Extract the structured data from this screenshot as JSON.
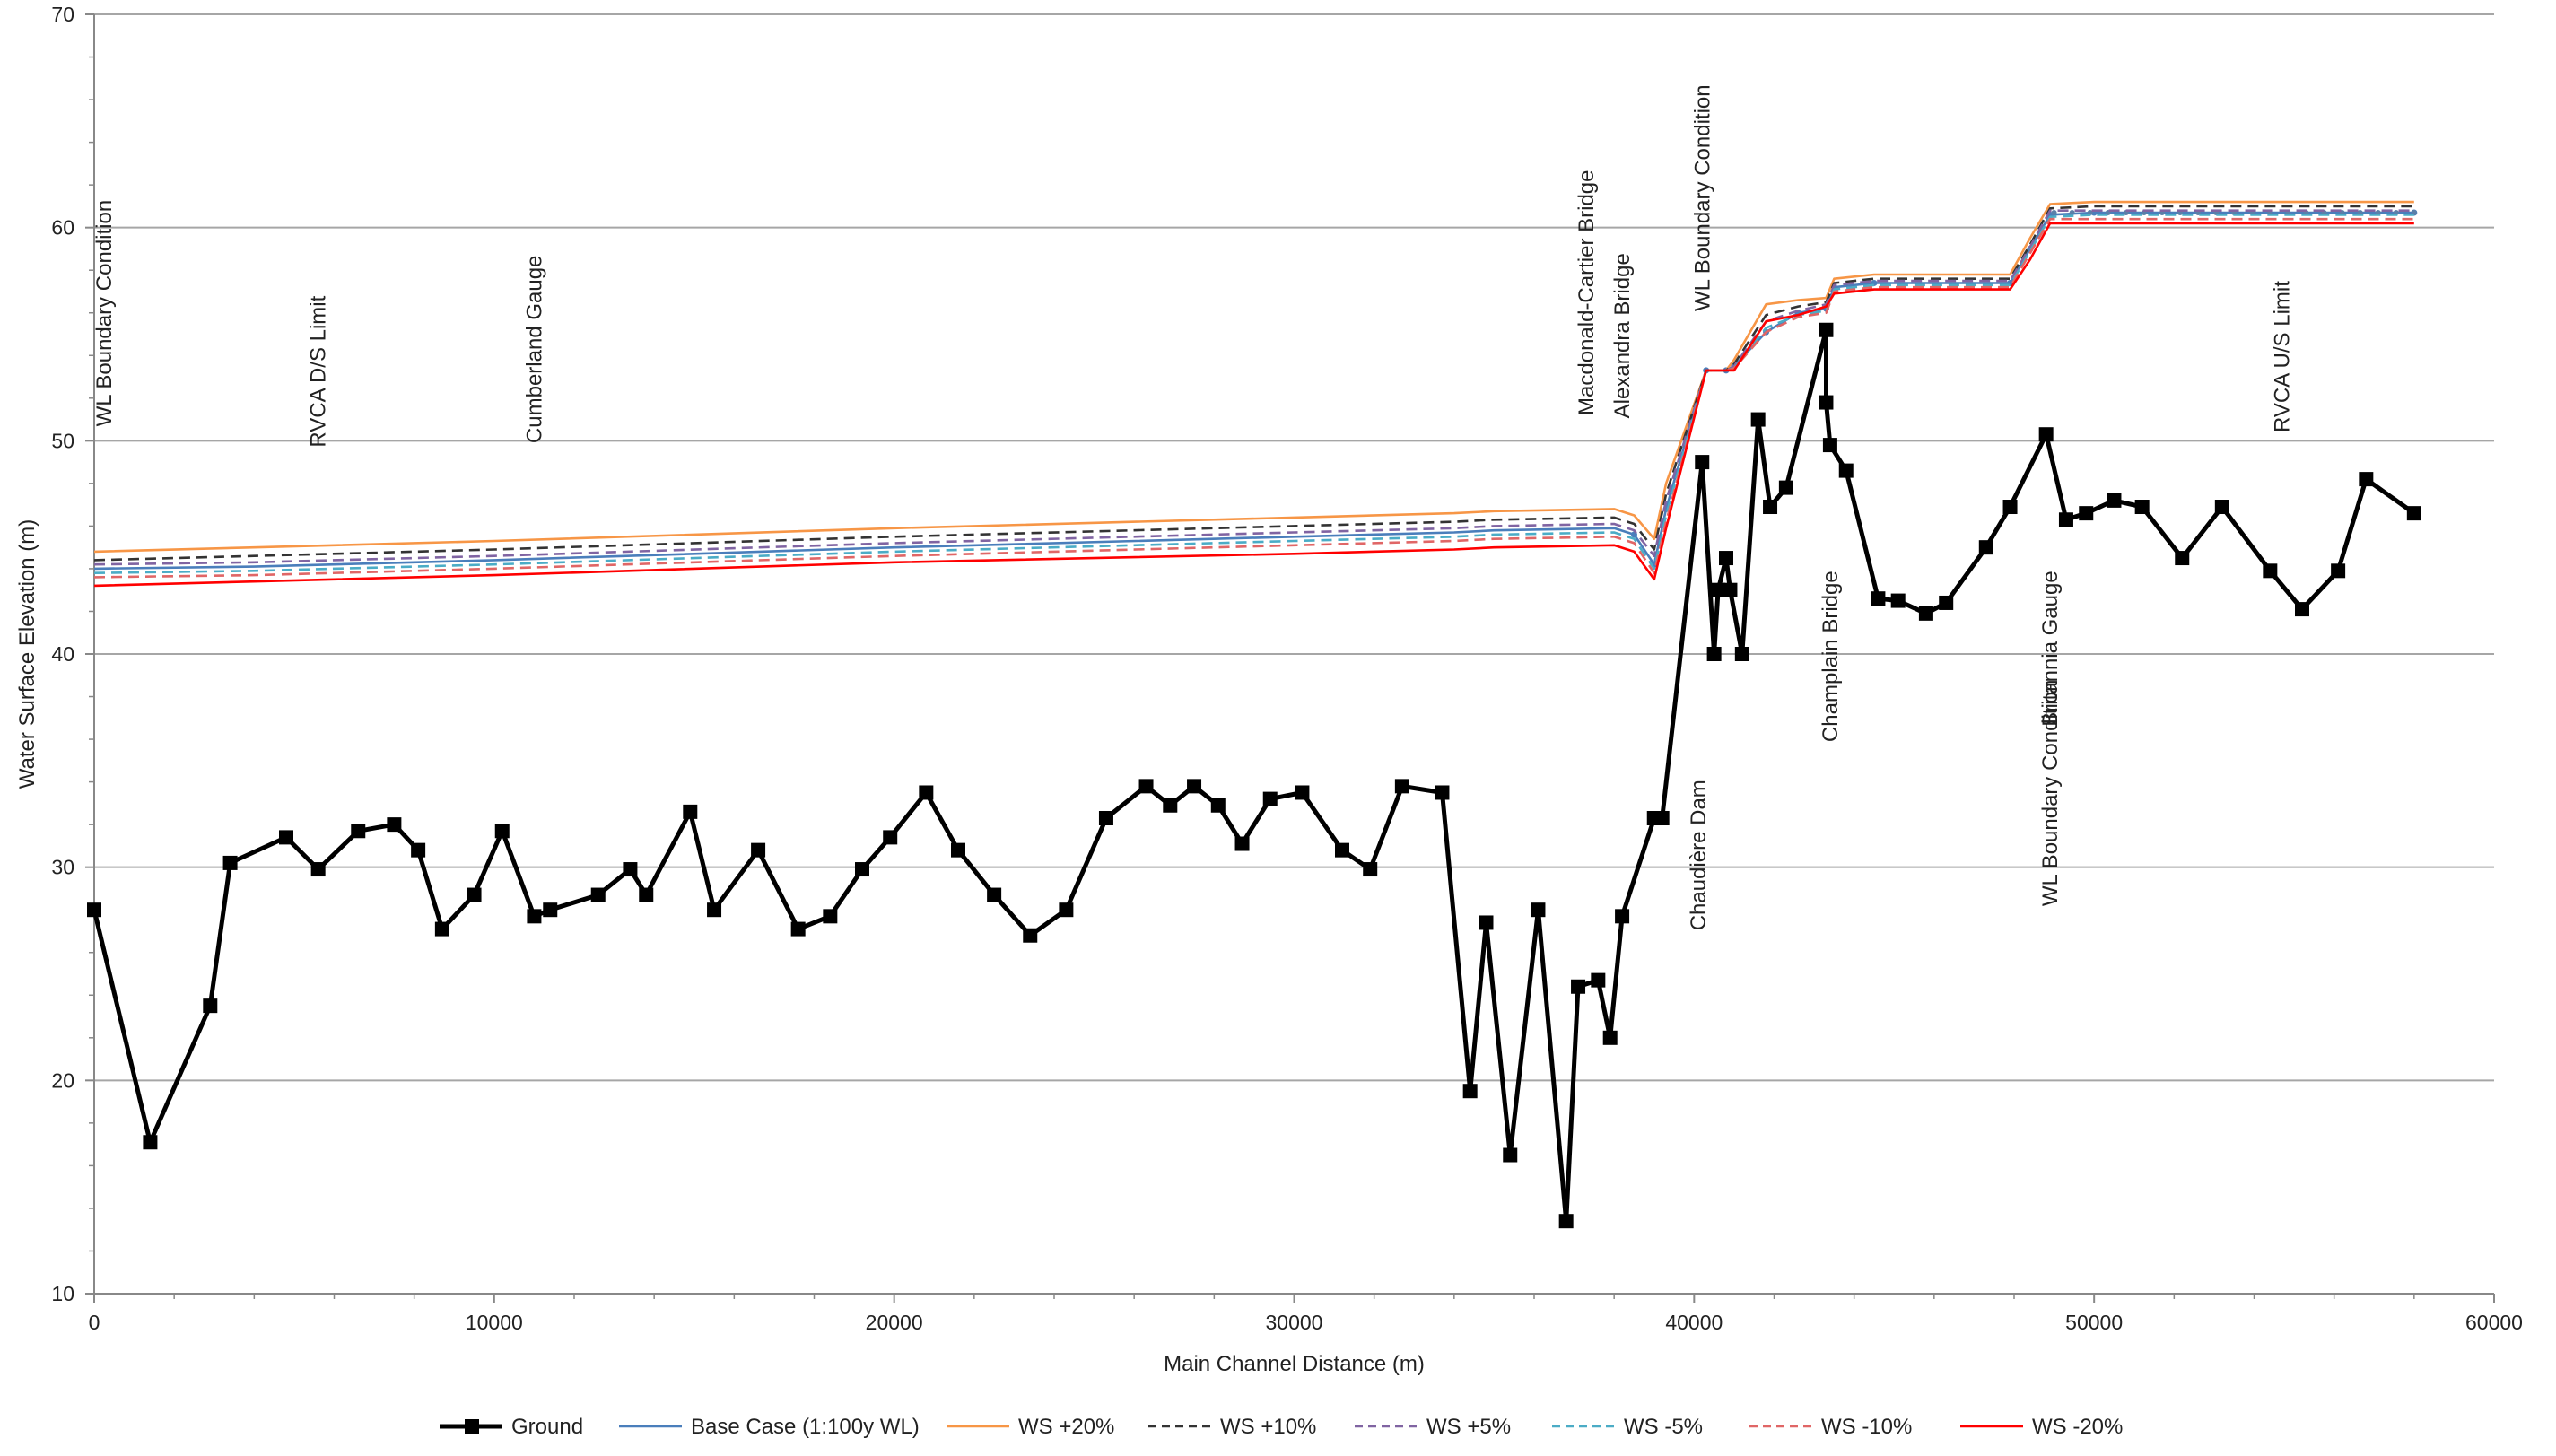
{
  "chart_data": {
    "type": "line",
    "xlabel": "Main Channel Distance (m)",
    "ylabel": "Water Surface Elevation (m)",
    "xlim": [
      0,
      60000
    ],
    "ylim": [
      10,
      70
    ],
    "xticks": [
      0,
      10000,
      20000,
      30000,
      40000,
      50000,
      60000
    ],
    "yticks": [
      10,
      20,
      30,
      40,
      50,
      60,
      70
    ],
    "grid": "horizontal",
    "legend_position": "bottom",
    "series": [
      {
        "name": "Ground",
        "color": "#000000",
        "style": "solid-markers",
        "x": [
          0,
          1400,
          2900,
          3400,
          4800,
          5600,
          6600,
          7500,
          8100,
          8700,
          9500,
          10200,
          11000,
          11400,
          12600,
          13400,
          13800,
          14900,
          15500,
          16600,
          17600,
          18400,
          19200,
          19900,
          20800,
          21600,
          22500,
          23400,
          24300,
          25300,
          26300,
          26900,
          27500,
          28100,
          28700,
          29400,
          30200,
          31200,
          31900,
          32700,
          33700,
          34400,
          34800,
          35400,
          36100,
          36800,
          37100,
          37600,
          37900,
          38200,
          39000,
          39200,
          40200,
          40500,
          40600,
          40800,
          40900,
          41200,
          41600,
          41900,
          42300,
          43300,
          43300,
          43400,
          43800,
          44600,
          45100,
          45800,
          46300,
          47300,
          47900,
          48800,
          49300,
          49800,
          50500,
          51200,
          52200,
          53200,
          54400,
          55200,
          56100,
          56800,
          58000
        ],
        "y": [
          28.0,
          17.1,
          23.5,
          30.2,
          31.4,
          29.9,
          31.7,
          32.0,
          30.8,
          27.1,
          28.7,
          31.7,
          27.7,
          28.0,
          28.7,
          29.9,
          28.7,
          32.6,
          28.0,
          30.8,
          27.1,
          27.7,
          29.9,
          31.4,
          33.5,
          30.8,
          28.7,
          26.8,
          28.0,
          32.3,
          33.8,
          32.9,
          33.8,
          32.9,
          31.1,
          33.2,
          33.5,
          30.8,
          29.9,
          33.8,
          33.5,
          19.5,
          27.4,
          16.5,
          28.0,
          13.4,
          24.4,
          24.7,
          22.0,
          27.7,
          32.3,
          32.3,
          49.0,
          40.0,
          43.0,
          44.5,
          43.0,
          40.0,
          51.0,
          46.9,
          47.8,
          55.2,
          51.8,
          49.8,
          48.6,
          42.6,
          42.5,
          41.9,
          42.4,
          45.0,
          46.9,
          50.3,
          46.3,
          46.6,
          47.2,
          46.9,
          44.5,
          46.9,
          43.9,
          42.1,
          43.9,
          48.2,
          46.6
        ]
      },
      {
        "name": "Base Case (1:100y WL)",
        "color": "#4a7ebb",
        "style": "solid",
        "x": [
          0,
          4000,
          10000,
          20000,
          30000,
          34000,
          35000,
          38000,
          38500,
          39000,
          39300,
          40300,
          40800,
          41000,
          41800,
          42600,
          43300,
          43500,
          44500,
          47900,
          48400,
          48900,
          50000,
          58000
        ],
        "y": [
          44.0,
          44.1,
          44.4,
          45.0,
          45.5,
          45.7,
          45.8,
          45.9,
          45.6,
          44.2,
          46.8,
          53.3,
          53.3,
          53.5,
          55.1,
          56.0,
          56.2,
          57.2,
          57.4,
          57.4,
          59.0,
          60.6,
          60.7,
          60.7
        ]
      },
      {
        "name": "WS  +20%",
        "color": "#f79646",
        "style": "solid",
        "x": [
          0,
          4000,
          10000,
          20000,
          30000,
          34000,
          35000,
          38000,
          38500,
          39000,
          39300,
          40300,
          40800,
          41000,
          41800,
          42600,
          43300,
          43500,
          44500,
          47900,
          48400,
          48900,
          50000,
          58000
        ],
        "y": [
          44.8,
          45.0,
          45.3,
          45.9,
          46.4,
          46.6,
          46.7,
          46.8,
          46.5,
          45.4,
          48.0,
          53.3,
          53.3,
          53.8,
          56.4,
          56.6,
          56.7,
          57.6,
          57.8,
          57.8,
          59.5,
          61.1,
          61.2,
          61.2
        ]
      },
      {
        "name": "WS  +10%",
        "color": "#333333",
        "style": "dashed",
        "x": [
          0,
          4000,
          10000,
          20000,
          30000,
          34000,
          35000,
          38000,
          38500,
          39000,
          39300,
          40300,
          40800,
          41000,
          41800,
          42600,
          43300,
          43500,
          44500,
          47900,
          48400,
          48900,
          50000,
          58000
        ],
        "y": [
          44.4,
          44.6,
          44.9,
          45.5,
          46.0,
          46.2,
          46.3,
          46.4,
          46.1,
          44.9,
          47.5,
          53.3,
          53.3,
          53.6,
          55.9,
          56.3,
          56.5,
          57.4,
          57.6,
          57.6,
          59.2,
          60.9,
          61.0,
          61.0
        ]
      },
      {
        "name": "WS  +5%",
        "color": "#8064a2",
        "style": "dashed",
        "x": [
          0,
          4000,
          10000,
          20000,
          30000,
          34000,
          35000,
          38000,
          38500,
          39000,
          39300,
          40300,
          40800,
          41000,
          41800,
          42600,
          43300,
          43500,
          44500,
          47900,
          48400,
          48900,
          50000,
          58000
        ],
        "y": [
          44.2,
          44.3,
          44.6,
          45.2,
          45.7,
          45.9,
          46.0,
          46.1,
          45.8,
          44.6,
          47.2,
          53.3,
          53.3,
          53.5,
          55.6,
          56.1,
          56.4,
          57.3,
          57.5,
          57.5,
          59.1,
          60.8,
          60.8,
          60.8
        ]
      },
      {
        "name": "WS  -5%",
        "color": "#4bacc6",
        "style": "dashed",
        "x": [
          0,
          4000,
          10000,
          20000,
          30000,
          34000,
          35000,
          38000,
          38500,
          39000,
          39300,
          40300,
          40800,
          41000,
          41800,
          42600,
          43300,
          43500,
          44500,
          47900,
          48400,
          48900,
          50000,
          58000
        ],
        "y": [
          43.8,
          43.9,
          44.2,
          44.8,
          45.3,
          45.5,
          45.6,
          45.7,
          45.4,
          44.0,
          46.5,
          53.3,
          53.3,
          53.4,
          55.3,
          55.9,
          56.1,
          57.1,
          57.3,
          57.3,
          58.9,
          60.5,
          60.6,
          60.6
        ]
      },
      {
        "name": "WS  -10%",
        "color": "#e06666",
        "style": "dashed",
        "x": [
          0,
          4000,
          10000,
          20000,
          30000,
          34000,
          35000,
          38000,
          38500,
          39000,
          39300,
          40300,
          40800,
          41000,
          41800,
          42600,
          43300,
          43500,
          44500,
          47900,
          48400,
          48900,
          50000,
          58000
        ],
        "y": [
          43.6,
          43.7,
          44.0,
          44.6,
          45.1,
          45.3,
          45.4,
          45.5,
          45.2,
          43.8,
          46.2,
          53.3,
          53.3,
          53.4,
          55.1,
          55.8,
          56.0,
          57.0,
          57.2,
          57.2,
          58.8,
          60.4,
          60.4,
          60.4
        ]
      },
      {
        "name": "WS  -20%",
        "color": "#ff0000",
        "style": "solid",
        "x": [
          0,
          4000,
          10000,
          20000,
          30000,
          34000,
          35000,
          38000,
          38500,
          39000,
          39300,
          40300,
          40800,
          41000,
          41800,
          42600,
          43300,
          43500,
          44500,
          47900,
          48400,
          48900,
          50000,
          58000
        ],
        "y": [
          43.2,
          43.4,
          43.7,
          44.3,
          44.7,
          44.9,
          45.0,
          45.1,
          44.8,
          43.5,
          45.9,
          53.3,
          53.3,
          53.3,
          55.6,
          55.9,
          56.3,
          56.9,
          57.1,
          57.1,
          58.5,
          60.2,
          60.2,
          60.2
        ]
      }
    ],
    "annotations": [
      {
        "text": "WL Boundary Condition",
        "x": 250,
        "y_top": 61.3
      },
      {
        "text": "RVCA D/S Limit",
        "x": 5600,
        "y_top": 56.8
      },
      {
        "text": "Cumberland Gauge",
        "x": 11000,
        "y_top": 58.7
      },
      {
        "text": "Macdonald-Cartier Bridge",
        "x": 37300,
        "y_top": 62.7
      },
      {
        "text": "Alexandra Bridge",
        "x": 38200,
        "y_top": 58.8
      },
      {
        "text": "WL Boundary Condition",
        "x": 40200,
        "y_top": 66.7
      },
      {
        "text": "Chaudière Dam",
        "x": 40100,
        "y_top": 34.1
      },
      {
        "text": "Champlain Bridge",
        "x": 43400,
        "y_top": 43.9
      },
      {
        "text": "Britannia Gauge",
        "x": 48900,
        "y_top": 43.9
      },
      {
        "text": "WL Boundary Condition",
        "x": 48900,
        "y_top": 38.8
      },
      {
        "text": "RVCA U/S Limit",
        "x": 54700,
        "y_top": 57.5
      }
    ]
  }
}
